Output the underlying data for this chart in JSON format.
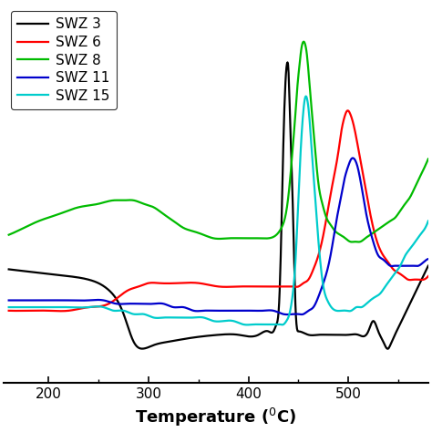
{
  "title": "",
  "xlabel": "Temperature ($^0$C)",
  "ylabel": "",
  "xlim": [
    155,
    580
  ],
  "background_color": "#ffffff",
  "series": [
    {
      "label": "SWZ 3",
      "color": "#000000",
      "points": [
        [
          160,
          0.38
        ],
        [
          190,
          0.37
        ],
        [
          220,
          0.36
        ],
        [
          240,
          0.35
        ],
        [
          260,
          0.32
        ],
        [
          275,
          0.25
        ],
        [
          285,
          0.17
        ],
        [
          295,
          0.15
        ],
        [
          305,
          0.16
        ],
        [
          320,
          0.17
        ],
        [
          340,
          0.18
        ],
        [
          370,
          0.19
        ],
        [
          390,
          0.19
        ],
        [
          410,
          0.19
        ],
        [
          420,
          0.2
        ],
        [
          425,
          0.2
        ],
        [
          428,
          0.22
        ],
        [
          431,
          0.3
        ],
        [
          433,
          0.5
        ],
        [
          435,
          0.75
        ],
        [
          437,
          0.92
        ],
        [
          439,
          0.98
        ],
        [
          440,
          0.96
        ],
        [
          441,
          0.88
        ],
        [
          443,
          0.7
        ],
        [
          445,
          0.5
        ],
        [
          447,
          0.28
        ],
        [
          450,
          0.2
        ],
        [
          460,
          0.19
        ],
        [
          470,
          0.19
        ],
        [
          480,
          0.19
        ],
        [
          490,
          0.19
        ],
        [
          500,
          0.19
        ],
        [
          510,
          0.19
        ],
        [
          520,
          0.2
        ],
        [
          525,
          0.23
        ],
        [
          530,
          0.2
        ],
        [
          535,
          0.17
        ],
        [
          540,
          0.15
        ],
        [
          542,
          0.16
        ],
        [
          545,
          0.18
        ],
        [
          550,
          0.21
        ],
        [
          555,
          0.24
        ],
        [
          560,
          0.27
        ],
        [
          565,
          0.3
        ],
        [
          570,
          0.33
        ],
        [
          575,
          0.36
        ],
        [
          580,
          0.39
        ]
      ]
    },
    {
      "label": "SWZ 6",
      "color": "#ff0000",
      "points": [
        [
          160,
          0.26
        ],
        [
          180,
          0.26
        ],
        [
          200,
          0.26
        ],
        [
          220,
          0.26
        ],
        [
          240,
          0.27
        ],
        [
          260,
          0.28
        ],
        [
          270,
          0.3
        ],
        [
          280,
          0.32
        ],
        [
          290,
          0.33
        ],
        [
          300,
          0.34
        ],
        [
          310,
          0.34
        ],
        [
          330,
          0.34
        ],
        [
          350,
          0.34
        ],
        [
          370,
          0.33
        ],
        [
          390,
          0.33
        ],
        [
          410,
          0.33
        ],
        [
          425,
          0.33
        ],
        [
          435,
          0.33
        ],
        [
          440,
          0.33
        ],
        [
          445,
          0.33
        ],
        [
          450,
          0.33
        ],
        [
          455,
          0.34
        ],
        [
          460,
          0.35
        ],
        [
          465,
          0.38
        ],
        [
          470,
          0.42
        ],
        [
          475,
          0.48
        ],
        [
          480,
          0.56
        ],
        [
          485,
          0.64
        ],
        [
          490,
          0.72
        ],
        [
          493,
          0.78
        ],
        [
          496,
          0.82
        ],
        [
          499,
          0.84
        ],
        [
          502,
          0.83
        ],
        [
          506,
          0.79
        ],
        [
          510,
          0.73
        ],
        [
          515,
          0.65
        ],
        [
          520,
          0.57
        ],
        [
          525,
          0.5
        ],
        [
          530,
          0.45
        ],
        [
          535,
          0.42
        ],
        [
          540,
          0.4
        ],
        [
          545,
          0.38
        ],
        [
          550,
          0.37
        ],
        [
          555,
          0.36
        ],
        [
          560,
          0.35
        ],
        [
          565,
          0.35
        ],
        [
          570,
          0.35
        ],
        [
          575,
          0.35
        ],
        [
          580,
          0.36
        ]
      ]
    },
    {
      "label": "SWZ 8",
      "color": "#00bb00",
      "points": [
        [
          160,
          0.48
        ],
        [
          175,
          0.5
        ],
        [
          190,
          0.52
        ],
        [
          210,
          0.54
        ],
        [
          230,
          0.56
        ],
        [
          250,
          0.57
        ],
        [
          265,
          0.58
        ],
        [
          275,
          0.58
        ],
        [
          285,
          0.58
        ],
        [
          295,
          0.57
        ],
        [
          305,
          0.56
        ],
        [
          315,
          0.54
        ],
        [
          325,
          0.52
        ],
        [
          335,
          0.5
        ],
        [
          345,
          0.49
        ],
        [
          355,
          0.48
        ],
        [
          365,
          0.47
        ],
        [
          380,
          0.47
        ],
        [
          395,
          0.47
        ],
        [
          410,
          0.47
        ],
        [
          420,
          0.47
        ],
        [
          428,
          0.48
        ],
        [
          433,
          0.5
        ],
        [
          438,
          0.55
        ],
        [
          441,
          0.62
        ],
        [
          444,
          0.72
        ],
        [
          447,
          0.83
        ],
        [
          449,
          0.91
        ],
        [
          451,
          0.97
        ],
        [
          453,
          1.02
        ],
        [
          455,
          1.04
        ],
        [
          457,
          1.03
        ],
        [
          459,
          0.99
        ],
        [
          461,
          0.92
        ],
        [
          464,
          0.82
        ],
        [
          467,
          0.72
        ],
        [
          470,
          0.63
        ],
        [
          474,
          0.57
        ],
        [
          478,
          0.53
        ],
        [
          482,
          0.51
        ],
        [
          487,
          0.49
        ],
        [
          492,
          0.48
        ],
        [
          497,
          0.47
        ],
        [
          502,
          0.46
        ],
        [
          507,
          0.46
        ],
        [
          512,
          0.46
        ],
        [
          517,
          0.47
        ],
        [
          522,
          0.48
        ],
        [
          527,
          0.49
        ],
        [
          532,
          0.5
        ],
        [
          537,
          0.51
        ],
        [
          542,
          0.52
        ],
        [
          547,
          0.53
        ],
        [
          552,
          0.55
        ],
        [
          557,
          0.57
        ],
        [
          562,
          0.59
        ],
        [
          567,
          0.62
        ],
        [
          572,
          0.65
        ],
        [
          577,
          0.68
        ],
        [
          580,
          0.7
        ]
      ]
    },
    {
      "label": "SWZ 11",
      "color": "#0000cc",
      "points": [
        [
          160,
          0.29
        ],
        [
          180,
          0.29
        ],
        [
          200,
          0.29
        ],
        [
          220,
          0.29
        ],
        [
          240,
          0.29
        ],
        [
          255,
          0.29
        ],
        [
          268,
          0.28
        ],
        [
          278,
          0.28
        ],
        [
          290,
          0.28
        ],
        [
          305,
          0.28
        ],
        [
          315,
          0.28
        ],
        [
          325,
          0.27
        ],
        [
          335,
          0.27
        ],
        [
          345,
          0.26
        ],
        [
          355,
          0.26
        ],
        [
          365,
          0.26
        ],
        [
          375,
          0.26
        ],
        [
          385,
          0.26
        ],
        [
          395,
          0.26
        ],
        [
          405,
          0.26
        ],
        [
          415,
          0.26
        ],
        [
          425,
          0.26
        ],
        [
          435,
          0.25
        ],
        [
          445,
          0.25
        ],
        [
          450,
          0.25
        ],
        [
          455,
          0.25
        ],
        [
          460,
          0.26
        ],
        [
          465,
          0.27
        ],
        [
          470,
          0.3
        ],
        [
          475,
          0.34
        ],
        [
          480,
          0.39
        ],
        [
          484,
          0.45
        ],
        [
          488,
          0.52
        ],
        [
          492,
          0.58
        ],
        [
          496,
          0.64
        ],
        [
          500,
          0.68
        ],
        [
          503,
          0.7
        ],
        [
          506,
          0.7
        ],
        [
          509,
          0.68
        ],
        [
          512,
          0.64
        ],
        [
          515,
          0.59
        ],
        [
          518,
          0.54
        ],
        [
          522,
          0.49
        ],
        [
          526,
          0.45
        ],
        [
          530,
          0.42
        ],
        [
          534,
          0.41
        ],
        [
          538,
          0.4
        ],
        [
          542,
          0.39
        ],
        [
          546,
          0.39
        ],
        [
          550,
          0.39
        ],
        [
          554,
          0.39
        ],
        [
          558,
          0.39
        ],
        [
          562,
          0.39
        ],
        [
          566,
          0.39
        ],
        [
          570,
          0.39
        ],
        [
          575,
          0.4
        ],
        [
          580,
          0.41
        ]
      ]
    },
    {
      "label": "SWZ 15",
      "color": "#00cccc",
      "points": [
        [
          160,
          0.27
        ],
        [
          180,
          0.27
        ],
        [
          200,
          0.27
        ],
        [
          220,
          0.27
        ],
        [
          240,
          0.27
        ],
        [
          255,
          0.27
        ],
        [
          265,
          0.26
        ],
        [
          275,
          0.26
        ],
        [
          285,
          0.25
        ],
        [
          295,
          0.25
        ],
        [
          305,
          0.24
        ],
        [
          315,
          0.24
        ],
        [
          325,
          0.24
        ],
        [
          335,
          0.24
        ],
        [
          345,
          0.24
        ],
        [
          355,
          0.24
        ],
        [
          365,
          0.23
        ],
        [
          375,
          0.23
        ],
        [
          385,
          0.23
        ],
        [
          395,
          0.22
        ],
        [
          405,
          0.22
        ],
        [
          415,
          0.22
        ],
        [
          422,
          0.22
        ],
        [
          428,
          0.22
        ],
        [
          432,
          0.22
        ],
        [
          435,
          0.22
        ],
        [
          438,
          0.23
        ],
        [
          441,
          0.25
        ],
        [
          444,
          0.3
        ],
        [
          447,
          0.4
        ],
        [
          449,
          0.52
        ],
        [
          451,
          0.65
        ],
        [
          453,
          0.76
        ],
        [
          455,
          0.84
        ],
        [
          457,
          0.88
        ],
        [
          459,
          0.87
        ],
        [
          461,
          0.82
        ],
        [
          463,
          0.74
        ],
        [
          466,
          0.62
        ],
        [
          469,
          0.5
        ],
        [
          472,
          0.4
        ],
        [
          475,
          0.33
        ],
        [
          479,
          0.29
        ],
        [
          483,
          0.27
        ],
        [
          488,
          0.26
        ],
        [
          493,
          0.26
        ],
        [
          498,
          0.26
        ],
        [
          503,
          0.26
        ],
        [
          508,
          0.27
        ],
        [
          513,
          0.27
        ],
        [
          518,
          0.28
        ],
        [
          522,
          0.29
        ],
        [
          527,
          0.3
        ],
        [
          532,
          0.31
        ],
        [
          537,
          0.33
        ],
        [
          542,
          0.35
        ],
        [
          547,
          0.37
        ],
        [
          552,
          0.39
        ],
        [
          557,
          0.42
        ],
        [
          562,
          0.44
        ],
        [
          567,
          0.46
        ],
        [
          572,
          0.48
        ],
        [
          577,
          0.5
        ],
        [
          580,
          0.52
        ]
      ]
    }
  ],
  "xticks": [
    200,
    300,
    400,
    500
  ],
  "legend_loc": "upper left",
  "linewidth": 1.6,
  "font_size": 11,
  "xlabel_fontsize": 13,
  "xlabel_fontweight": "bold"
}
